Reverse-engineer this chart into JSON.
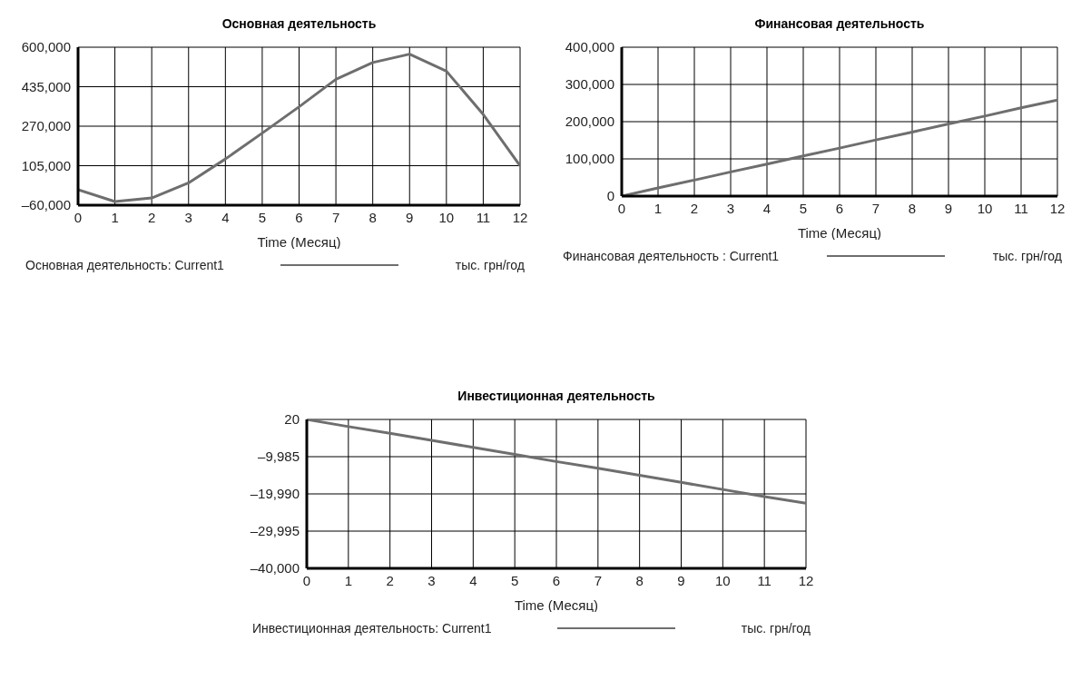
{
  "chart_data": [
    {
      "type": "line",
      "title": "Основная деятельность",
      "xlabel": "Time (Месяц)",
      "annotations": [
        "тыс. грн/год"
      ],
      "x": [
        0,
        1,
        2,
        3,
        4,
        5,
        6,
        7,
        8,
        9,
        10,
        11,
        12
      ],
      "series": [
        {
          "name": "Основная деятельность: Current1",
          "color": "#6e6e6e",
          "values": [
            5000,
            -45000,
            -30000,
            33000,
            133000,
            241000,
            351000,
            466000,
            536000,
            571000,
            500000,
            319000,
            105000
          ]
        }
      ],
      "xlim": [
        0,
        12
      ],
      "xticks": [
        0,
        1,
        2,
        3,
        4,
        5,
        6,
        7,
        8,
        9,
        10,
        11,
        12
      ],
      "ylim": [
        -60000,
        600000
      ],
      "yticks": [
        {
          "value": -60000,
          "label": "–60,000"
        },
        {
          "value": 105000,
          "label": "105,000"
        },
        {
          "value": 270000,
          "label": "270,000"
        },
        {
          "value": 435000,
          "label": "435,000"
        },
        {
          "value": 600000,
          "label": "600,000"
        }
      ],
      "grid": true,
      "legend": "bottom",
      "marker": "none",
      "line_style": "solid"
    },
    {
      "type": "line",
      "title": "Финансовая деятельность",
      "xlabel": "Time (Месяц)",
      "annotations": [
        "тыс. грн/год"
      ],
      "x": [
        0,
        1,
        2,
        3,
        4,
        5,
        6,
        7,
        8,
        9,
        10,
        11,
        12
      ],
      "series": [
        {
          "name": "Финансовая деятельность : Current1",
          "color": "#6e6e6e",
          "values": [
            0,
            22000,
            43000,
            65000,
            86000,
            108000,
            129000,
            151000,
            172000,
            194000,
            215000,
            237000,
            258000
          ]
        }
      ],
      "xlim": [
        0,
        12
      ],
      "xticks": [
        0,
        1,
        2,
        3,
        4,
        5,
        6,
        7,
        8,
        9,
        10,
        11,
        12
      ],
      "ylim": [
        0,
        400000
      ],
      "yticks": [
        0,
        {
          "value": 100000,
          "label": "100,000"
        },
        {
          "value": 200000,
          "label": "200,000"
        },
        {
          "value": 300000,
          "label": "300,000"
        },
        {
          "value": 400000,
          "label": "400,000"
        }
      ],
      "grid": true,
      "legend": "bottom",
      "marker": "none",
      "line_style": "solid"
    },
    {
      "type": "line",
      "title": "Инвестиционная деятельность",
      "xlabel": "Time (Месяц)",
      "annotations": [
        "тыс. грн/год"
      ],
      "x": [
        0,
        1,
        2,
        3,
        4,
        5,
        6,
        7,
        8,
        9,
        10,
        11,
        12
      ],
      "series": [
        {
          "name": "Инвестиционная деятельность: Current1",
          "color": "#6e6e6e",
          "values": [
            0,
            -1900,
            -3700,
            -5600,
            -7500,
            -9400,
            -11300,
            -13100,
            -15000,
            -16900,
            -18800,
            -20700,
            -22500
          ]
        }
      ],
      "xlim": [
        0,
        12
      ],
      "xticks": [
        0,
        1,
        2,
        3,
        4,
        5,
        6,
        7,
        8,
        9,
        10,
        11,
        12
      ],
      "ylim": [
        -40000,
        20
      ],
      "yticks": [
        {
          "value": -40000,
          "label": "–40,000"
        },
        {
          "value": -29995,
          "label": "–29,995"
        },
        {
          "value": -19990,
          "label": "–19,990"
        },
        {
          "value": -9985,
          "label": "–9,985"
        },
        20
      ],
      "grid": true,
      "legend": "bottom",
      "marker": "none",
      "line_style": "solid"
    }
  ]
}
